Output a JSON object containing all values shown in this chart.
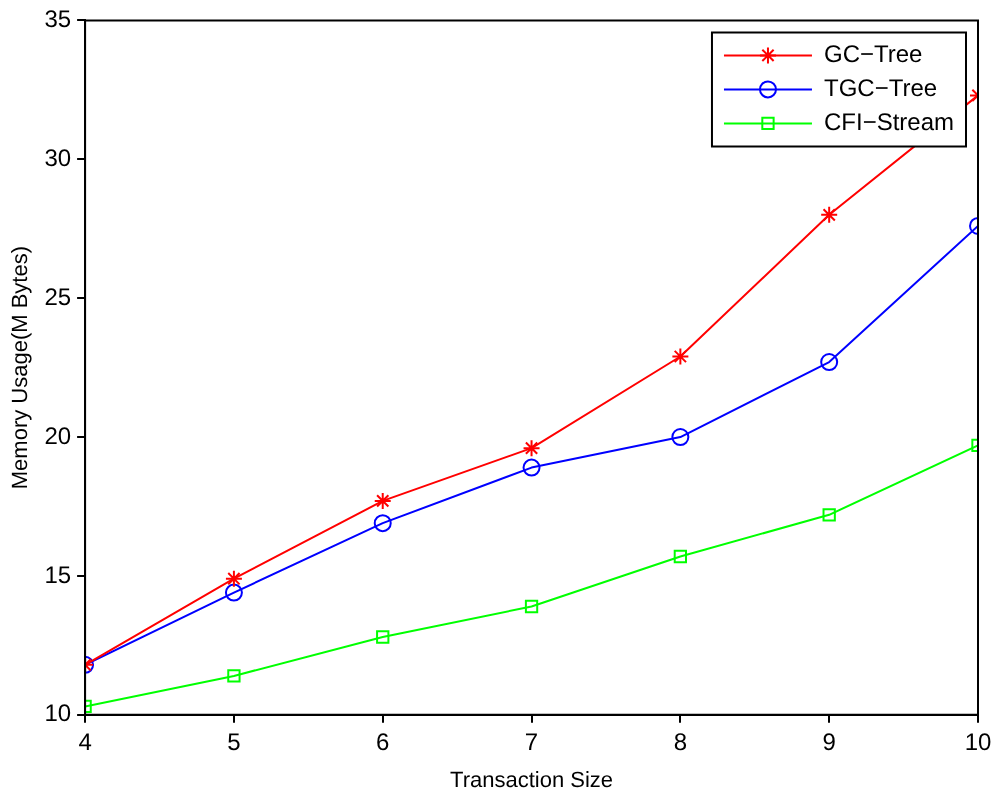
{
  "chart_data": {
    "type": "line",
    "xlabel": "Transaction Size",
    "ylabel": "Memory Usage(M Bytes)",
    "x": [
      4,
      5,
      6,
      7,
      8,
      9,
      10
    ],
    "xlim": [
      4,
      10
    ],
    "xticks": [
      4,
      5,
      6,
      7,
      8,
      9,
      10
    ],
    "ylim": [
      10,
      35
    ],
    "yticks": [
      10,
      15,
      20,
      25,
      30,
      35
    ],
    "grid": false,
    "legend": "top right",
    "line_style": "solid",
    "series": [
      {
        "name": "GC−Tree",
        "color": "#ff0000",
        "marker": "cross",
        "values": [
          11.8,
          14.9,
          17.7,
          19.6,
          22.9,
          28.0,
          32.3
        ]
      },
      {
        "name": "TGC−Tree",
        "color": "#0000ff",
        "marker": "circle",
        "values": [
          11.8,
          14.4,
          16.9,
          18.9,
          20.0,
          22.7,
          27.6
        ]
      },
      {
        "name": "CFI−Stream",
        "color": "#00ff00",
        "marker": "square",
        "values": [
          10.3,
          11.4,
          12.8,
          13.9,
          15.7,
          17.2,
          19.7
        ]
      }
    ]
  }
}
